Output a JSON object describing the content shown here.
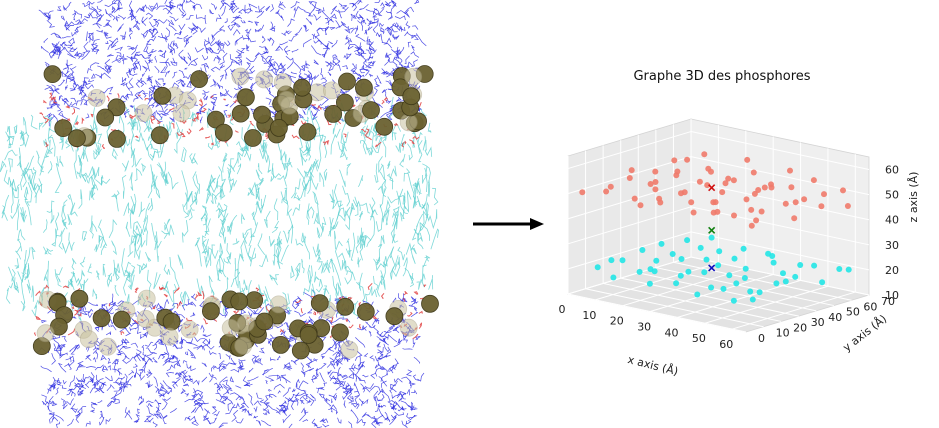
{
  "figure": {
    "colors": {
      "water": "#2f2fe0",
      "lipid_tails": "#5fd0d0",
      "phosphorus_bead": "#6b6231",
      "headgroup_accent": "#e04040",
      "arrow": "#000000",
      "upper_points": "#f07a6a",
      "lower_points": "#22e5e5",
      "center_upper_marker": "#d01010",
      "center_middle_marker": "#108010",
      "center_lower_marker": "#1010c0",
      "pane": "#ececec"
    }
  },
  "chart_data": {
    "type": "scatter",
    "title": "Graphe 3D des phosphores",
    "xlabel": "x axis (Å)",
    "ylabel": "y axis (Å)",
    "zlabel": "z axis (Å)",
    "xticks": [
      "0",
      "10",
      "20",
      "30",
      "40",
      "50",
      "60"
    ],
    "yticks": [
      "0",
      "10",
      "20",
      "30",
      "40",
      "50",
      "60",
      "70"
    ],
    "zticks": [
      "10",
      "20",
      "30",
      "40",
      "50",
      "60"
    ],
    "xlim": [
      0,
      65
    ],
    "ylim": [
      0,
      70
    ],
    "zlim": [
      10,
      65
    ],
    "series": [
      {
        "color": "#f07a6a",
        "points": [
          [
            5,
            60,
            52
          ],
          [
            10,
            62,
            55
          ],
          [
            15,
            58,
            50
          ],
          [
            20,
            60,
            48
          ],
          [
            25,
            63,
            56
          ],
          [
            30,
            59,
            53
          ],
          [
            35,
            61,
            49
          ],
          [
            40,
            64,
            55
          ],
          [
            45,
            57,
            51
          ],
          [
            50,
            62,
            54
          ],
          [
            55,
            60,
            50
          ],
          [
            60,
            63,
            52
          ],
          [
            65,
            58,
            48
          ],
          [
            3,
            45,
            50
          ],
          [
            8,
            48,
            55
          ],
          [
            13,
            42,
            53
          ],
          [
            18,
            47,
            49
          ],
          [
            23,
            44,
            56
          ],
          [
            28,
            46,
            51
          ],
          [
            33,
            43,
            54
          ],
          [
            38,
            49,
            50
          ],
          [
            43,
            45,
            53
          ],
          [
            48,
            41,
            55
          ],
          [
            53,
            47,
            49
          ],
          [
            58,
            44,
            52
          ],
          [
            63,
            46,
            50
          ],
          [
            4,
            30,
            54
          ],
          [
            9,
            33,
            49
          ],
          [
            14,
            28,
            52
          ],
          [
            19,
            32,
            55
          ],
          [
            24,
            29,
            50
          ],
          [
            29,
            34,
            53
          ],
          [
            34,
            31,
            48
          ],
          [
            39,
            27,
            54
          ],
          [
            44,
            33,
            51
          ],
          [
            49,
            30,
            55
          ],
          [
            54,
            26,
            50
          ],
          [
            59,
            32,
            53
          ],
          [
            64,
            29,
            49
          ],
          [
            6,
            15,
            51
          ],
          [
            11,
            18,
            55
          ],
          [
            16,
            13,
            49
          ],
          [
            21,
            17,
            53
          ],
          [
            26,
            12,
            50
          ],
          [
            31,
            16,
            54
          ],
          [
            36,
            14,
            52
          ],
          [
            41,
            19,
            48
          ],
          [
            46,
            11,
            55
          ],
          [
            51,
            15,
            50
          ],
          [
            56,
            17,
            53
          ],
          [
            61,
            12,
            51
          ],
          [
            2,
            5,
            50
          ],
          [
            12,
            3,
            53
          ],
          [
            22,
            7,
            49
          ],
          [
            32,
            2,
            55
          ],
          [
            42,
            6,
            51
          ],
          [
            52,
            4,
            54
          ],
          [
            62,
            8,
            50
          ]
        ]
      },
      {
        "color": "#22e5e5",
        "points": [
          [
            5,
            60,
            20
          ],
          [
            12,
            63,
            22
          ],
          [
            18,
            58,
            19
          ],
          [
            25,
            61,
            21
          ],
          [
            32,
            64,
            20
          ],
          [
            38,
            57,
            22
          ],
          [
            45,
            62,
            19
          ],
          [
            52,
            59,
            21
          ],
          [
            58,
            64,
            20
          ],
          [
            64,
            60,
            22
          ],
          [
            4,
            47,
            21
          ],
          [
            10,
            44,
            19
          ],
          [
            17,
            49,
            22
          ],
          [
            23,
            43,
            20
          ],
          [
            30,
            48,
            21
          ],
          [
            36,
            45,
            19
          ],
          [
            43,
            50,
            22
          ],
          [
            49,
            46,
            20
          ],
          [
            56,
            42,
            21
          ],
          [
            62,
            48,
            19
          ],
          [
            6,
            33,
            22
          ],
          [
            13,
            30,
            20
          ],
          [
            19,
            35,
            21
          ],
          [
            26,
            28,
            19
          ],
          [
            33,
            34,
            22
          ],
          [
            39,
            31,
            20
          ],
          [
            46,
            29,
            21
          ],
          [
            53,
            36,
            19
          ],
          [
            59,
            32,
            22
          ],
          [
            3,
            20,
            20
          ],
          [
            9,
            17,
            22
          ],
          [
            16,
            22,
            19
          ],
          [
            22,
            15,
            21
          ],
          [
            29,
            19,
            20
          ],
          [
            35,
            23,
            22
          ],
          [
            42,
            16,
            19
          ],
          [
            48,
            21,
            21
          ],
          [
            55,
            18,
            20
          ],
          [
            61,
            14,
            22
          ],
          [
            7,
            6,
            21
          ],
          [
            14,
            4,
            19
          ],
          [
            21,
            8,
            22
          ],
          [
            28,
            3,
            20
          ],
          [
            35,
            7,
            21
          ],
          [
            44,
            5,
            19
          ],
          [
            51,
            9,
            22
          ],
          [
            58,
            4,
            20
          ],
          [
            63,
            7,
            21
          ]
        ]
      }
    ],
    "markers": [
      {
        "color": "#d01010",
        "point": [
          30,
          35,
          52
        ]
      },
      {
        "color": "#108010",
        "point": [
          30,
          35,
          35
        ]
      },
      {
        "color": "#1010c0",
        "point": [
          30,
          35,
          20
        ]
      }
    ]
  }
}
